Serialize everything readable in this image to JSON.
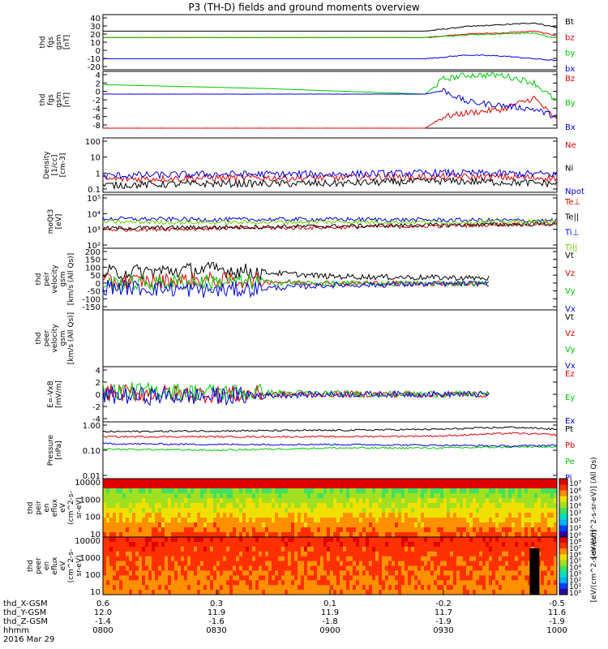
{
  "title": "P3 (TH-D) fields and ground moments overview",
  "colors": {
    "black": "#000000",
    "red": "#e00000",
    "green": "#00c800",
    "blue": "#0000e0",
    "lime": "#66d000"
  },
  "chart_data": [
    {
      "type": "line",
      "panel": "fgs_gsm",
      "ylabel": [
        "thd",
        "fgs",
        "gsm",
        "[nT]"
      ],
      "yticks": [
        "40",
        "30",
        "20",
        "10",
        "0",
        "-10",
        "-20"
      ],
      "ylim": [
        -20,
        40
      ],
      "series": [
        {
          "name": "Bt",
          "color": "#000000",
          "x": [
            0,
            0.25,
            0.5,
            0.71,
            0.8,
            0.88,
            0.95,
            1
          ],
          "y": [
            22,
            22,
            22,
            22,
            27,
            29,
            31,
            26
          ]
        },
        {
          "name": "bz",
          "color": "#e00000",
          "x": [
            0,
            0.25,
            0.5,
            0.71,
            0.8,
            0.88,
            0.95,
            1
          ],
          "y": [
            15,
            15,
            15,
            15,
            19,
            20,
            22,
            17
          ]
        },
        {
          "name": "by",
          "color": "#00c800",
          "x": [
            0,
            0.25,
            0.5,
            0.71,
            0.8,
            0.88,
            0.95,
            1
          ],
          "y": [
            15,
            15,
            15,
            15,
            18,
            19,
            20,
            14
          ]
        },
        {
          "name": "bx",
          "color": "#0000e0",
          "x": [
            0,
            0.25,
            0.5,
            0.71,
            0.8,
            0.88,
            0.95,
            1
          ],
          "y": [
            -8,
            -8,
            -8,
            -8,
            -4,
            -5,
            -8,
            -10
          ]
        }
      ]
    },
    {
      "type": "line",
      "panel": "fgs_gsm_zoom",
      "ylabel": [
        "thd",
        "fgs",
        "gsm",
        "[nT]"
      ],
      "yticks": [
        "4",
        "2",
        "0",
        "-2",
        "-4",
        "-6",
        "-8"
      ],
      "ylim": [
        -10,
        5
      ],
      "series": [
        {
          "name": "Bz",
          "color": "#e00000",
          "x": [
            0,
            0.35,
            0.71,
            0.75,
            0.8,
            0.88,
            0.95,
            1
          ],
          "y": [
            -10,
            -10,
            -10,
            -7,
            -6,
            -5,
            -2,
            -8
          ]
        },
        {
          "name": "By",
          "color": "#00c800",
          "x": [
            0,
            0.35,
            0.71,
            0.75,
            0.8,
            0.88,
            0.95,
            1
          ],
          "y": [
            1.5,
            0.5,
            -1,
            3,
            4,
            4,
            2,
            -3
          ]
        },
        {
          "name": "Bx",
          "color": "#0000e0",
          "x": [
            0,
            0.35,
            0.71,
            0.75,
            0.8,
            0.88,
            0.95,
            1
          ],
          "y": [
            -1,
            -1,
            -1,
            0,
            -3,
            -4,
            -5,
            -7
          ]
        }
      ]
    },
    {
      "type": "line",
      "panel": "density",
      "ylabel": [
        "Density",
        "[1/cc]",
        "[cm-3]"
      ],
      "yticks": [
        "100",
        "10",
        "1",
        "0.1"
      ],
      "ylim": [
        0.05,
        300
      ],
      "log": true,
      "series": [
        {
          "name": "Ne",
          "color": "#e00000",
          "x": [
            0,
            0.25,
            0.5,
            0.75,
            1
          ],
          "y": [
            0.4,
            0.5,
            0.5,
            0.6,
            0.5
          ]
        },
        {
          "name": "Ni",
          "color": "#000000",
          "x": [
            0,
            0.25,
            0.5,
            0.75,
            1
          ],
          "y": [
            0.15,
            0.2,
            0.2,
            0.3,
            0.2
          ]
        },
        {
          "name": "Npot",
          "color": "#0000e0",
          "x": [
            0,
            0.25,
            0.5,
            0.75,
            1
          ],
          "y": [
            0.7,
            0.9,
            0.9,
            1.1,
            0.9
          ]
        }
      ]
    },
    {
      "type": "line",
      "panel": "temperature",
      "ylabel": [
        "moQt3",
        "[eV]"
      ],
      "yticks": [
        "10⁵",
        "10⁴",
        "10³",
        "10²"
      ],
      "ylim": [
        100,
        100000
      ],
      "log": true,
      "series": [
        {
          "name": "Te⊥",
          "color": "#e00000",
          "x": [
            0,
            0.25,
            0.5,
            0.75,
            1
          ],
          "y": [
            1100,
            1300,
            1500,
            1800,
            2500
          ]
        },
        {
          "name": "Te||",
          "color": "#000000",
          "x": [
            0,
            0.25,
            0.5,
            0.75,
            1
          ],
          "y": [
            1300,
            1500,
            1700,
            2000,
            2300
          ]
        },
        {
          "name": "Ti⊥",
          "color": "#0000e0",
          "x": [
            0,
            0.25,
            0.5,
            0.75,
            1
          ],
          "y": [
            4500,
            4000,
            4200,
            3800,
            3500
          ]
        },
        {
          "name": "Ti||",
          "color": "#66d000",
          "x": [
            0,
            0.25,
            0.5,
            0.75,
            1
          ],
          "y": [
            3000,
            2800,
            3000,
            2900,
            3200
          ]
        }
      ]
    },
    {
      "type": "line",
      "panel": "peir_velocity",
      "ylabel": [
        "thd",
        "peir",
        "velocity",
        "gsm",
        "[km/s (All Qs)]"
      ],
      "yticks": [
        "200",
        "150",
        "100",
        "50",
        "0",
        "-50",
        "-100",
        "-150"
      ],
      "ylim": [
        -150,
        200
      ],
      "series": [
        {
          "name": "Vt",
          "color": "#000000",
          "x": [
            0,
            0.25,
            0.5,
            0.85
          ],
          "y": [
            60,
            80,
            40,
            30
          ]
        },
        {
          "name": "Vz",
          "color": "#e00000",
          "x": [
            0,
            0.25,
            0.5,
            0.85
          ],
          "y": [
            10,
            20,
            0,
            0
          ]
        },
        {
          "name": "Vy",
          "color": "#00c800",
          "x": [
            0,
            0.25,
            0.5,
            0.85
          ],
          "y": [
            0,
            10,
            0,
            0
          ]
        },
        {
          "name": "Vx",
          "color": "#0000e0",
          "x": [
            0,
            0.25,
            0.5,
            0.85
          ],
          "y": [
            -20,
            -40,
            -10,
            0
          ]
        }
      ]
    },
    {
      "type": "line",
      "panel": "peer_velocity",
      "ylabel": [
        "thd",
        "peer",
        "velocity",
        "gsm",
        "[km/s (All Qs)]"
      ],
      "yticks": [],
      "ylim": [
        -150,
        200
      ],
      "series": [
        {
          "name": "Vt",
          "color": "#000000",
          "x": [],
          "y": []
        },
        {
          "name": "Vz",
          "color": "#e00000",
          "x": [],
          "y": []
        },
        {
          "name": "Vy",
          "color": "#00c800",
          "x": [],
          "y": []
        },
        {
          "name": "Vx",
          "color": "#0000e0",
          "x": [],
          "y": []
        }
      ]
    },
    {
      "type": "line",
      "panel": "efield",
      "ylabel": [
        "E=-VxB",
        "[mV/m]"
      ],
      "yticks": [
        "4",
        "2",
        "0",
        "-2",
        "-4"
      ],
      "ylim": [
        -4,
        4
      ],
      "series": [
        {
          "name": "Ez",
          "color": "#e00000",
          "x": [
            0,
            0.25,
            0.5,
            0.85
          ],
          "y": [
            0.2,
            0,
            0,
            0
          ]
        },
        {
          "name": "Ey",
          "color": "#00c800",
          "x": [
            0,
            0.25,
            0.5,
            0.85
          ],
          "y": [
            0.5,
            0.3,
            0.1,
            0
          ]
        },
        {
          "name": "Ex",
          "color": "#0000e0",
          "x": [
            0,
            0.25,
            0.5,
            0.85
          ],
          "y": [
            -0.2,
            -0.3,
            0,
            0
          ]
        }
      ]
    },
    {
      "type": "line",
      "panel": "pressure",
      "ylabel": [
        "Pressure",
        "[nPa]"
      ],
      "yticks": [
        "1.00",
        "0.10",
        "0.01"
      ],
      "ylim": [
        0.01,
        1.0
      ],
      "log": true,
      "series": [
        {
          "name": "Pt",
          "color": "#000000",
          "x": [
            0,
            0.25,
            0.5,
            0.75,
            0.9,
            1
          ],
          "y": [
            0.45,
            0.48,
            0.5,
            0.55,
            0.65,
            0.55
          ]
        },
        {
          "name": "Pb",
          "color": "#e00000",
          "x": [
            0,
            0.25,
            0.5,
            0.75,
            0.9,
            1
          ],
          "y": [
            0.3,
            0.3,
            0.3,
            0.32,
            0.4,
            0.35
          ]
        },
        {
          "name": "Pe",
          "color": "#00c800",
          "x": [
            0,
            0.25,
            0.5,
            0.75,
            0.9,
            1
          ],
          "y": [
            0.11,
            0.1,
            0.12,
            0.12,
            0.13,
            0.13
          ]
        },
        {
          "name": "Pi",
          "color": "#0000e0",
          "x": [
            0,
            0.25,
            0.5,
            0.75,
            0.9,
            1
          ],
          "y": [
            0.17,
            0.16,
            0.16,
            0.15,
            0.14,
            0.15
          ]
        }
      ]
    },
    {
      "type": "heatmap",
      "panel": "peir_eflux",
      "ylabel": [
        "thd",
        "peir",
        "en",
        "eflux",
        "eV",
        "(cm^2-s-",
        "sr-eV)"
      ],
      "yticks": [
        "10000",
        "1000",
        "100",
        "10"
      ],
      "ylim": [
        5,
        30000
      ],
      "log": true,
      "colorbar_label": "[eV/(cm^2-s-sr-eV)] (All Qs)",
      "colorbar_ticks": [
        "10⁷",
        "10⁶",
        "10⁵",
        "10⁴",
        "10³",
        "10²",
        "10¹",
        "10⁰"
      ]
    },
    {
      "type": "heatmap",
      "panel": "peer_eflux",
      "ylabel": [
        "thd",
        "peer",
        "en",
        "eflux",
        "eV",
        "(cm^2-s-",
        "sr-eV)"
      ],
      "yticks": [
        "10000",
        "1000",
        "100",
        "10"
      ],
      "ylim": [
        5,
        30000
      ],
      "log": true,
      "colorbar_label": "[eV/(cm^2-s-sr-eV)]",
      "colorbar_ticks": [
        "10⁸",
        "10⁷",
        "10⁶",
        "10⁵",
        "10⁴",
        "10³",
        "10²",
        "10¹",
        "10⁰"
      ]
    }
  ],
  "xaxis": {
    "rows": [
      {
        "label": "thd_X-GSM",
        "values": [
          "0.6",
          "0.3",
          "0.1",
          "-0.2",
          "-0.5"
        ]
      },
      {
        "label": "thd_Y-GSM",
        "values": [
          "12.0",
          "11.9",
          "11.9",
          "11.7",
          "11.6"
        ]
      },
      {
        "label": "thd_Z-GSM",
        "values": [
          "-1.4",
          "-1.6",
          "-1.8",
          "-1.9",
          "-1.9"
        ]
      },
      {
        "label": "hhmm",
        "values": [
          "0800",
          "0830",
          "0900",
          "0930",
          "1000"
        ]
      }
    ],
    "date": "2016 Mar 29"
  }
}
